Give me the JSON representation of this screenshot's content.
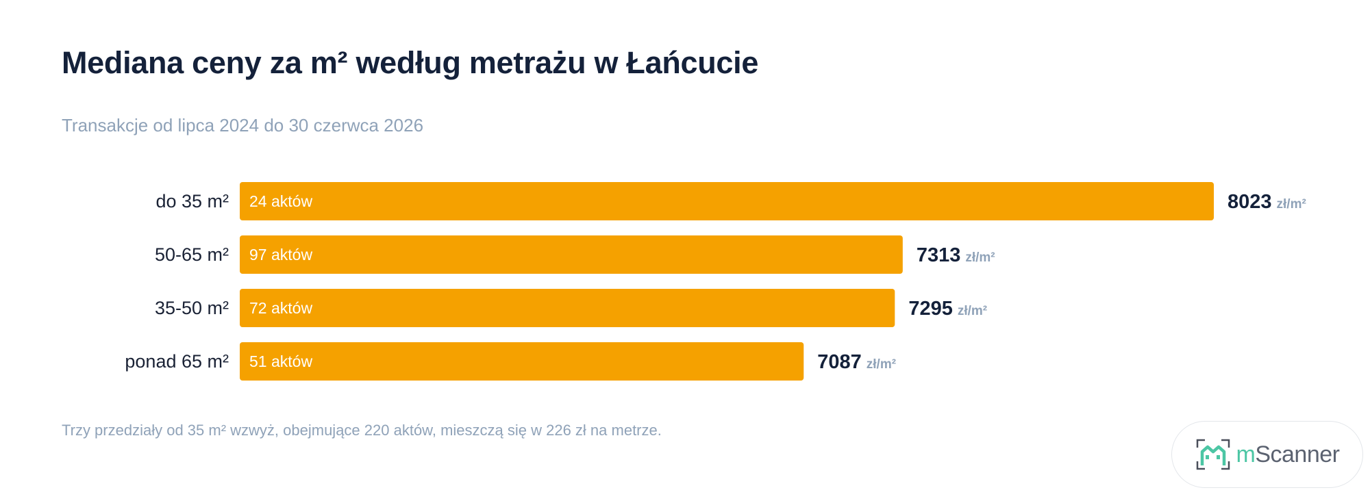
{
  "chart_data": {
    "type": "bar",
    "orientation": "horizontal",
    "title": "Mediana ceny za m² według metrażu w Łańcucie",
    "subtitle": "Transakcje od lipca 2024 do 30 czerwca 2026",
    "categories": [
      "do 35 m²",
      "50-65 m²",
      "35-50 m²",
      "ponad 65 m²"
    ],
    "series": [
      {
        "values": [
          8023,
          7313,
          7295,
          7087
        ],
        "bar_labels": [
          "24 aktów",
          "97 aktów",
          "72 aktów",
          "51 aktów"
        ]
      }
    ],
    "value_unit": "zł/m²",
    "xlim": [
      5800,
      8023
    ],
    "grid": false,
    "legend": "none",
    "colors": {
      "bar": "#f5a100"
    }
  },
  "footer": {
    "note": "Trzy przedziały od 35 m² wzwyż, obejmujące 220 aktów, mieszczą się w 226 zł na metrze."
  },
  "logo": {
    "prefix": "m",
    "suffix": "Scanner",
    "icon": "house-scanner-icon",
    "accent": "#4cc6a4"
  }
}
